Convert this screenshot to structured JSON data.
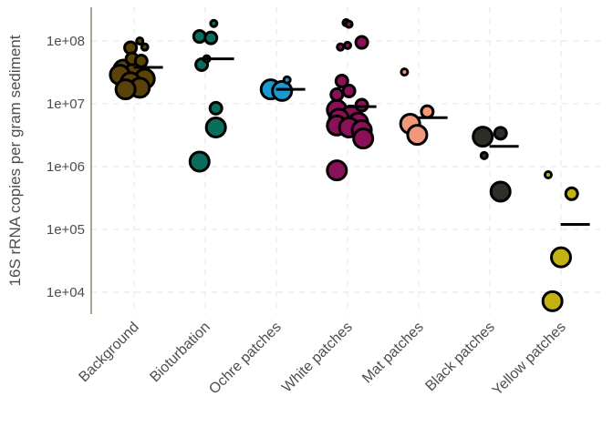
{
  "chart_data": {
    "type": "scatter",
    "title": "",
    "xlabel": "",
    "ylabel": "16S rRNA copies per gram sediment",
    "y_scale": "log10",
    "ylim": [
      4500,
      350000000
    ],
    "grid": true,
    "y_ticks": [
      {
        "value": 10000,
        "label": "1e+04"
      },
      {
        "value": 100000,
        "label": "1e+05"
      },
      {
        "value": 1000000,
        "label": "1e+06"
      },
      {
        "value": 10000000,
        "label": "1e+07"
      },
      {
        "value": 100000000,
        "label": "1e+08"
      }
    ],
    "categories": [
      "Background",
      "Bioturbation",
      "Ochre patches",
      "White patches",
      "Mat patches",
      "Black patches",
      "Yellow patches"
    ],
    "colors": [
      "#5a4208",
      "#0a6e5e",
      "#1b9ad2",
      "#8a1158",
      "#f2987a",
      "#2c2e27",
      "#c3b214"
    ],
    "point_size_levels": [
      "small",
      "medium",
      "large"
    ],
    "groups": [
      {
        "category": "Background",
        "mean": 38000000,
        "points": [
          {
            "dx": 0.08,
            "y": 100000000,
            "size": "small"
          },
          {
            "dx": 0.15,
            "y": 80000000,
            "size": "small"
          },
          {
            "dx": -0.05,
            "y": 78000000,
            "size": "medium"
          },
          {
            "dx": -0.03,
            "y": 52000000,
            "size": "medium"
          },
          {
            "dx": 0.1,
            "y": 48000000,
            "size": "medium"
          },
          {
            "dx": -0.15,
            "y": 35000000,
            "size": "large"
          },
          {
            "dx": 0.02,
            "y": 32000000,
            "size": "large"
          },
          {
            "dx": -0.2,
            "y": 29000000,
            "size": "large"
          },
          {
            "dx": 0.15,
            "y": 25000000,
            "size": "large"
          },
          {
            "dx": -0.05,
            "y": 22000000,
            "size": "large"
          },
          {
            "dx": 0.08,
            "y": 18000000,
            "size": "large"
          },
          {
            "dx": -0.12,
            "y": 17000000,
            "size": "large"
          }
        ]
      },
      {
        "category": "Bioturbation",
        "mean": 52000000,
        "points": [
          {
            "dx": 0.12,
            "y": 190000000,
            "size": "small"
          },
          {
            "dx": -0.08,
            "y": 118000000,
            "size": "medium"
          },
          {
            "dx": 0.08,
            "y": 112000000,
            "size": "medium"
          },
          {
            "dx": 0.02,
            "y": 52000000,
            "size": "small"
          },
          {
            "dx": -0.05,
            "y": 42000000,
            "size": "medium"
          },
          {
            "dx": 0.15,
            "y": 8500000,
            "size": "medium"
          },
          {
            "dx": 0.15,
            "y": 4200000,
            "size": "large"
          },
          {
            "dx": -0.08,
            "y": 1200000,
            "size": "large"
          }
        ]
      },
      {
        "category": "Ochre patches",
        "mean": 17000000,
        "points": [
          {
            "dx": 0.15,
            "y": 24000000,
            "size": "small"
          },
          {
            "dx": -0.08,
            "y": 17000000,
            "size": "large"
          },
          {
            "dx": 0.08,
            "y": 16000000,
            "size": "large"
          }
        ]
      },
      {
        "category": "White patches",
        "mean": 9000000,
        "points": [
          {
            "dx": -0.02,
            "y": 195000000,
            "size": "small"
          },
          {
            "dx": 0.02,
            "y": 185000000,
            "size": "small"
          },
          {
            "dx": 0.2,
            "y": 95000000,
            "size": "medium"
          },
          {
            "dx": 0.0,
            "y": 85000000,
            "size": "small"
          },
          {
            "dx": -0.1,
            "y": 80000000,
            "size": "small"
          },
          {
            "dx": -0.08,
            "y": 23000000,
            "size": "medium"
          },
          {
            "dx": 0.02,
            "y": 16000000,
            "size": "medium"
          },
          {
            "dx": -0.15,
            "y": 14000000,
            "size": "medium"
          },
          {
            "dx": 0.2,
            "y": 9500000,
            "size": "medium"
          },
          {
            "dx": -0.15,
            "y": 8000000,
            "size": "large"
          },
          {
            "dx": 0.05,
            "y": 6500000,
            "size": "large"
          },
          {
            "dx": -0.12,
            "y": 5800000,
            "size": "large"
          },
          {
            "dx": 0.15,
            "y": 5000000,
            "size": "large"
          },
          {
            "dx": -0.15,
            "y": 4500000,
            "size": "large"
          },
          {
            "dx": 0.02,
            "y": 4200000,
            "size": "large"
          },
          {
            "dx": 0.2,
            "y": 3800000,
            "size": "large"
          },
          {
            "dx": 0.22,
            "y": 2800000,
            "size": "large"
          },
          {
            "dx": -0.15,
            "y": 870000,
            "size": "large"
          }
        ]
      },
      {
        "category": "Mat patches",
        "mean": 6000000,
        "points": [
          {
            "dx": -0.2,
            "y": 32000000,
            "size": "small"
          },
          {
            "dx": 0.12,
            "y": 7500000,
            "size": "medium"
          },
          {
            "dx": -0.12,
            "y": 4800000,
            "size": "large"
          },
          {
            "dx": -0.02,
            "y": 3200000,
            "size": "large"
          }
        ]
      },
      {
        "category": "Black patches",
        "mean": 2100000,
        "points": [
          {
            "dx": 0.15,
            "y": 3400000,
            "size": "medium"
          },
          {
            "dx": -0.1,
            "y": 3000000,
            "size": "large"
          },
          {
            "dx": -0.08,
            "y": 1500000,
            "size": "small"
          },
          {
            "dx": 0.15,
            "y": 400000,
            "size": "large"
          }
        ]
      },
      {
        "category": "Yellow patches",
        "mean": 120000,
        "points": [
          {
            "dx": -0.18,
            "y": 740000,
            "size": "small"
          },
          {
            "dx": 0.15,
            "y": 370000,
            "size": "medium"
          },
          {
            "dx": 0.0,
            "y": 36000,
            "size": "large"
          },
          {
            "dx": -0.12,
            "y": 7200,
            "size": "large"
          }
        ]
      }
    ]
  }
}
